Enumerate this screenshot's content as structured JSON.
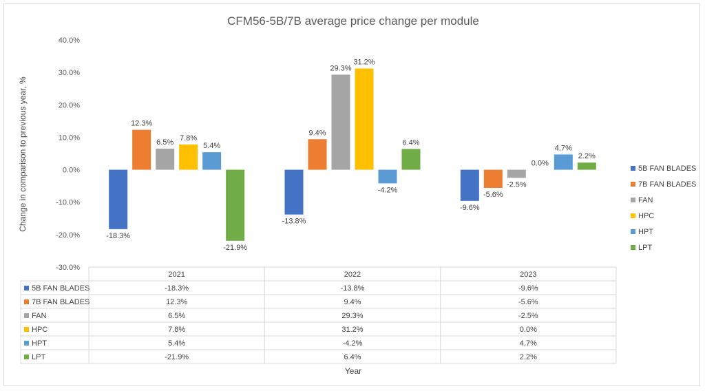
{
  "chart_data": {
    "type": "bar",
    "title": "CFM56-5B/7B average price change per module",
    "xlabel": "Year",
    "ylabel": "Change in comparison to previous year, %",
    "ylim": [
      -30,
      40
    ],
    "yticks": [
      "40.0%",
      "30.0%",
      "20.0%",
      "10.0%",
      "0.0%",
      "-10.0%",
      "-20.0%",
      "-30.0%"
    ],
    "categories": [
      "2021",
      "2022",
      "2023"
    ],
    "grid": false,
    "legend_position": "right",
    "data_table": true,
    "series": [
      {
        "name": "5B FAN BLADES",
        "color": "#4472C4",
        "values": [
          -18.3,
          -13.8,
          -9.6
        ],
        "labels": [
          "-18.3%",
          "-13.8%",
          "-9.6%"
        ]
      },
      {
        "name": "7B FAN BLADES",
        "color": "#ED7D31",
        "values": [
          12.3,
          9.4,
          -5.6
        ],
        "labels": [
          "12.3%",
          "9.4%",
          "-5.6%"
        ]
      },
      {
        "name": "FAN",
        "color": "#A5A5A5",
        "values": [
          6.5,
          29.3,
          -2.5
        ],
        "labels": [
          "6.5%",
          "29.3%",
          "-2.5%"
        ]
      },
      {
        "name": "HPC",
        "color": "#FFC000",
        "values": [
          7.8,
          31.2,
          0.0
        ],
        "labels": [
          "7.8%",
          "31.2%",
          "0.0%"
        ]
      },
      {
        "name": "HPT",
        "color": "#5B9BD5",
        "values": [
          5.4,
          -4.2,
          4.7
        ],
        "labels": [
          "5.4%",
          "-4.2%",
          "4.7%"
        ]
      },
      {
        "name": "LPT",
        "color": "#70AD47",
        "values": [
          -21.9,
          6.4,
          2.2
        ],
        "labels": [
          "-21.9%",
          "6.4%",
          "2.2%"
        ]
      }
    ]
  }
}
